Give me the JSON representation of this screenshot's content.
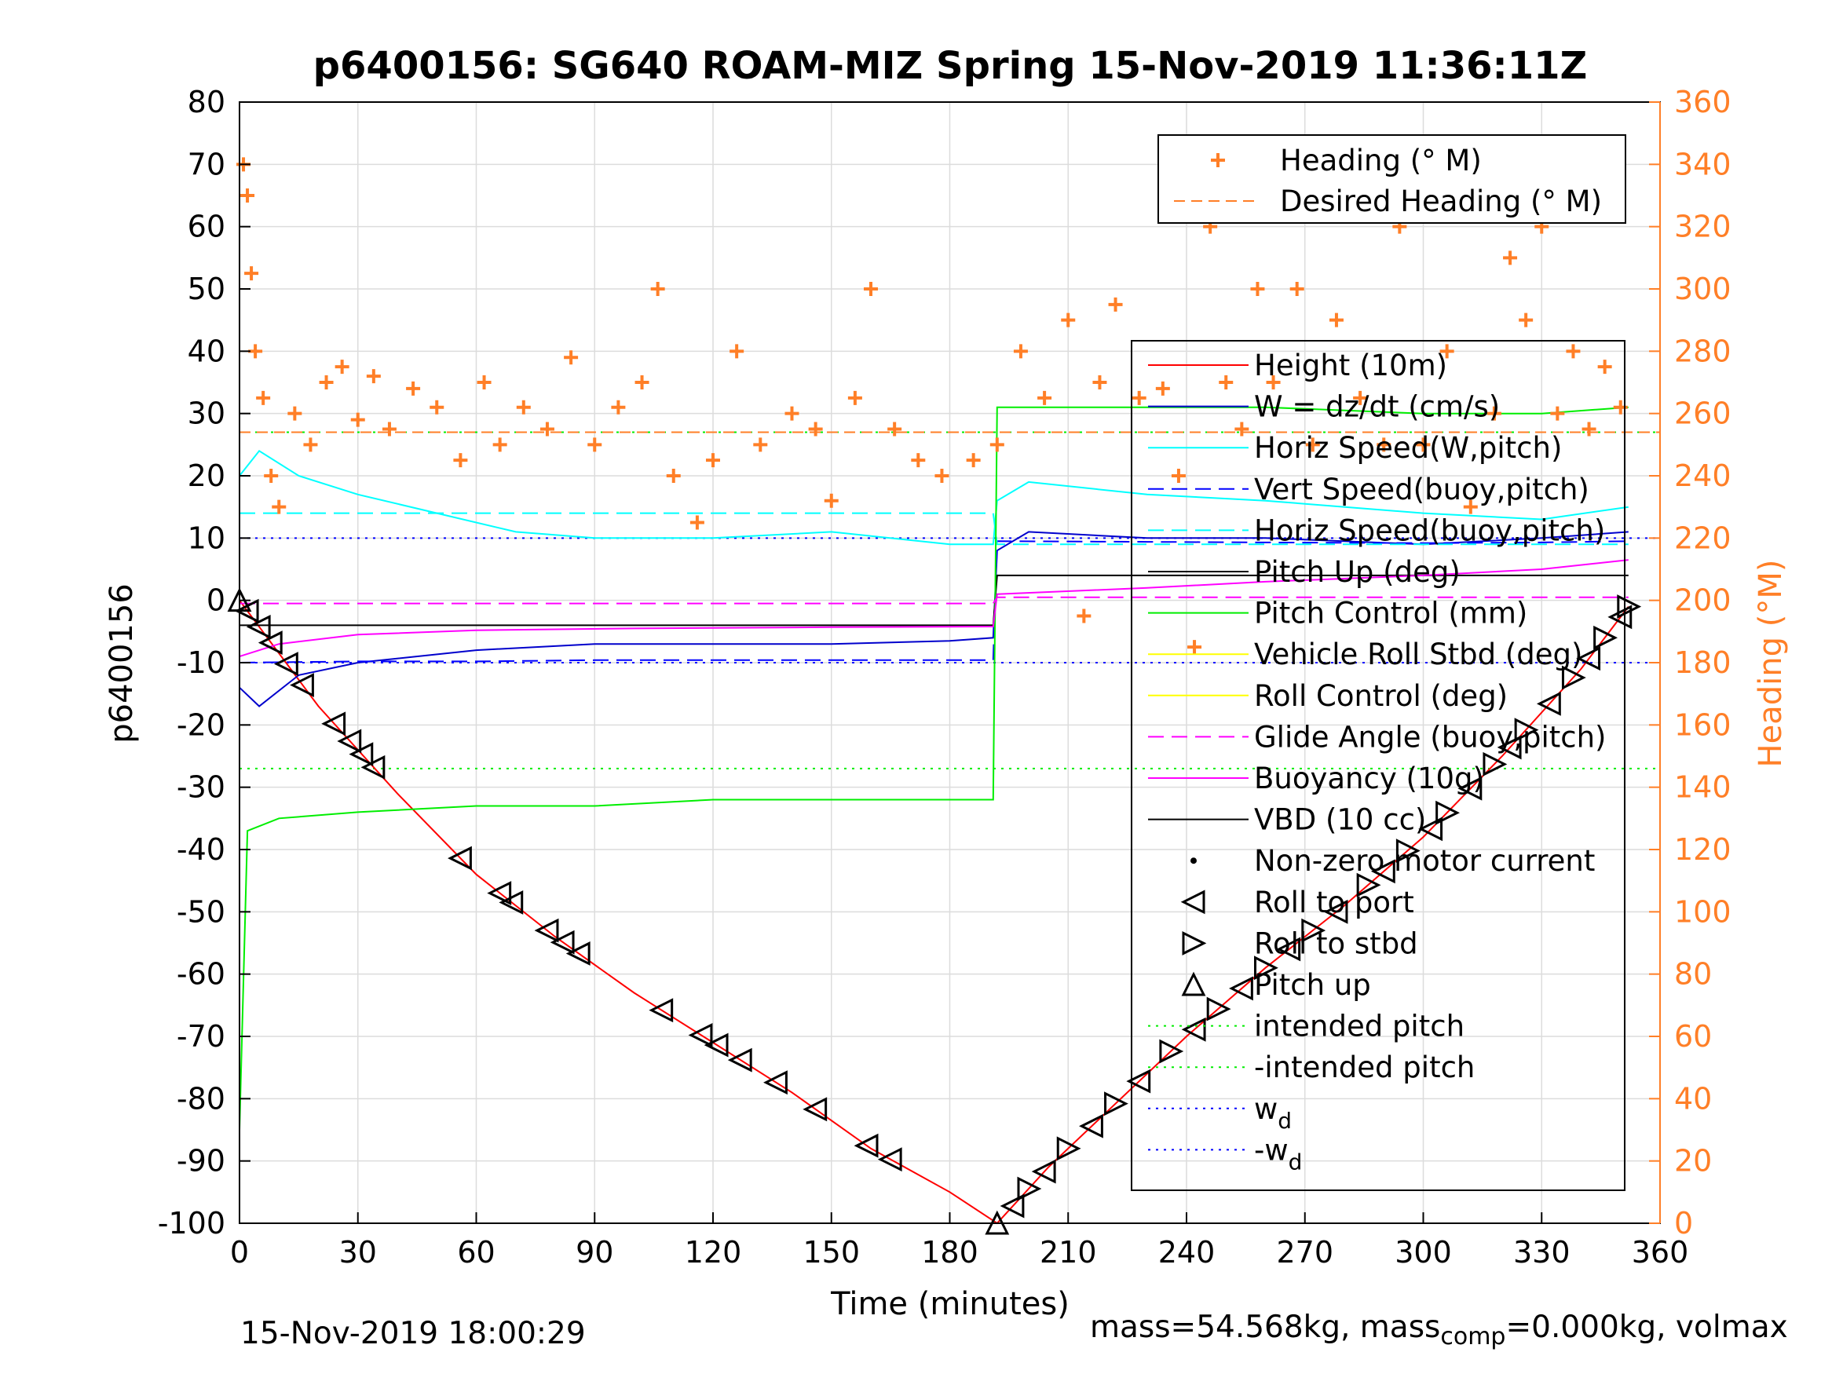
{
  "chart_data": {
    "type": "line",
    "title": "p6400156: SG640 ROAM-MIZ Spring 15-Nov-2019 11:36:11Z",
    "xlabel": "Time (minutes)",
    "ylabel_left": "p6400156",
    "ylabel_right": "Heading (°M)",
    "xlim": [
      0,
      360
    ],
    "ylim_left": [
      -100,
      80
    ],
    "ylim_right": [
      0,
      360
    ],
    "x_ticks": [
      0,
      30,
      60,
      90,
      120,
      150,
      180,
      210,
      240,
      270,
      300,
      330,
      360
    ],
    "y_ticks_left": [
      80,
      70,
      60,
      50,
      40,
      30,
      20,
      10,
      0,
      -10,
      -20,
      -30,
      -40,
      -50,
      -60,
      -70,
      -80,
      -90,
      -100
    ],
    "y_ticks_right": [
      360,
      340,
      320,
      300,
      280,
      260,
      240,
      220,
      200,
      180,
      160,
      140,
      120,
      100,
      80,
      60,
      40,
      20,
      0
    ],
    "grid": true,
    "colors": {
      "height": "#ff0000",
      "w": "#0000cc",
      "horiz_speed": "#00ffff",
      "vert_speed": "#0000ff",
      "pitch_up": "#000000",
      "pitch_control": "#00ee00",
      "roll": "#ffff00",
      "glide": "#ff00ff",
      "heading": "#ff7f27",
      "wd": "#0000ff"
    },
    "heading_legend": {
      "placement": "top-right",
      "entries": [
        "Heading (° M)",
        "Desired Heading (° M)"
      ]
    },
    "legend": {
      "placement": "right",
      "entries": [
        "Height (10m)",
        "W = dz/dt (cm/s)",
        "Horiz Speed(W,pitch)",
        "Vert Speed(buoy,pitch)",
        "Horiz Speed(buoy,pitch)",
        "Pitch Up (deg)",
        "Pitch Control (mm)",
        "Vehicle Roll Stbd (deg)",
        "Roll Control (deg)",
        "Glide Angle (buoy,pitch)",
        "Buoyancy (10g)",
        "VBD (10 cc)",
        "Non-zero motor current",
        "Roll to port",
        "Roll to stbd",
        "Pitch up",
        "intended pitch",
        "-intended pitch",
        "w",
        "-w"
      ],
      "subscripts": {
        "18": "d",
        "19": "d"
      }
    },
    "reference_lines": {
      "intended_pitch": 27,
      "wd": 10,
      "desired_heading_deg": 254
    },
    "series": [
      {
        "name": "Height (10m)",
        "x": [
          0,
          20,
          40,
          60,
          80,
          100,
          120,
          140,
          160,
          180,
          192,
          205,
          220,
          240,
          260,
          280,
          300,
          320,
          340,
          352
        ],
        "values": [
          0,
          -17,
          -31,
          -44,
          -54,
          -63,
          -71,
          -79,
          -88,
          -95,
          -100,
          -91,
          -82,
          -70,
          -59,
          -49,
          -38,
          -25,
          -11,
          -1
        ]
      },
      {
        "name": "W = dz/dt (cm/s)",
        "x": [
          0,
          5,
          15,
          30,
          60,
          90,
          120,
          150,
          180,
          191,
          192,
          200,
          230,
          260,
          300,
          330,
          352
        ],
        "values": [
          -14,
          -17,
          -12,
          -10,
          -8,
          -7,
          -7,
          -7,
          -6.5,
          -6,
          8,
          11,
          10,
          10,
          9,
          10,
          11
        ]
      },
      {
        "name": "Horiz Speed(W,pitch)",
        "x": [
          0,
          5,
          15,
          30,
          50,
          70,
          90,
          120,
          150,
          180,
          191,
          192,
          200,
          230,
          260,
          300,
          330,
          352
        ],
        "values": [
          20,
          24,
          20,
          17,
          14,
          11,
          10,
          10,
          11,
          9,
          9,
          16,
          19,
          17,
          16,
          14,
          13,
          15
        ]
      },
      {
        "name": "Vert Speed(buoy,pitch)",
        "x": [
          0,
          30,
          60,
          90,
          120,
          150,
          180,
          191,
          192,
          230,
          260,
          300,
          330,
          352
        ],
        "values": [
          -10,
          -9.8,
          -9.8,
          -9.6,
          -9.6,
          -9.6,
          -9.6,
          -9.6,
          9.5,
          9.4,
          9.3,
          9.2,
          9.3,
          9.5
        ]
      },
      {
        "name": "Horiz Speed(buoy,pitch)",
        "x": [
          0,
          30,
          60,
          90,
          120,
          150,
          180,
          191,
          192,
          230,
          260,
          300,
          330,
          352
        ],
        "values": [
          14,
          14,
          14,
          14,
          14,
          14,
          14,
          14,
          9,
          9,
          9,
          9,
          9,
          9
        ]
      },
      {
        "name": "Pitch Up (deg)",
        "x": [
          0,
          191,
          192,
          352
        ],
        "values": [
          -4,
          -4,
          4,
          4
        ]
      },
      {
        "name": "Pitch Control (mm)",
        "x": [
          0,
          2,
          10,
          30,
          60,
          90,
          120,
          150,
          180,
          191,
          192,
          230,
          260,
          300,
          330,
          352
        ],
        "values": [
          -85,
          -37,
          -35,
          -34,
          -33,
          -33,
          -32,
          -32,
          -32,
          -32,
          31,
          31,
          31,
          30,
          30,
          31
        ]
      },
      {
        "name": "Buoyancy (10g)",
        "x": [
          0,
          10,
          30,
          60,
          100,
          150,
          191,
          192,
          230,
          260,
          300,
          330,
          352
        ],
        "values": [
          -9,
          -7,
          -5.5,
          -4.8,
          -4.5,
          -4.3,
          -4.2,
          1,
          2,
          3,
          4,
          5,
          6.5
        ]
      },
      {
        "name": "Glide Angle (buoy,pitch)",
        "x": [
          0,
          191,
          192,
          352
        ],
        "values": [
          -0.5,
          -0.5,
          0.5,
          0.5
        ]
      }
    ],
    "heading_points_deg": [
      {
        "x": 1,
        "y": 340
      },
      {
        "x": 2,
        "y": 330
      },
      {
        "x": 3,
        "y": 305
      },
      {
        "x": 4,
        "y": 280
      },
      {
        "x": 6,
        "y": 265
      },
      {
        "x": 8,
        "y": 240
      },
      {
        "x": 10,
        "y": 230
      },
      {
        "x": 14,
        "y": 260
      },
      {
        "x": 18,
        "y": 250
      },
      {
        "x": 22,
        "y": 270
      },
      {
        "x": 26,
        "y": 275
      },
      {
        "x": 30,
        "y": 258
      },
      {
        "x": 34,
        "y": 272
      },
      {
        "x": 38,
        "y": 255
      },
      {
        "x": 44,
        "y": 268
      },
      {
        "x": 50,
        "y": 262
      },
      {
        "x": 56,
        "y": 245
      },
      {
        "x": 62,
        "y": 270
      },
      {
        "x": 66,
        "y": 250
      },
      {
        "x": 72,
        "y": 262
      },
      {
        "x": 78,
        "y": 255
      },
      {
        "x": 84,
        "y": 278
      },
      {
        "x": 90,
        "y": 250
      },
      {
        "x": 96,
        "y": 262
      },
      {
        "x": 102,
        "y": 270
      },
      {
        "x": 106,
        "y": 300
      },
      {
        "x": 110,
        "y": 240
      },
      {
        "x": 116,
        "y": 225
      },
      {
        "x": 120,
        "y": 245
      },
      {
        "x": 126,
        "y": 280
      },
      {
        "x": 132,
        "y": 250
      },
      {
        "x": 140,
        "y": 260
      },
      {
        "x": 146,
        "y": 255
      },
      {
        "x": 150,
        "y": 232
      },
      {
        "x": 156,
        "y": 265
      },
      {
        "x": 160,
        "y": 300
      },
      {
        "x": 166,
        "y": 255
      },
      {
        "x": 172,
        "y": 245
      },
      {
        "x": 178,
        "y": 240
      },
      {
        "x": 186,
        "y": 245
      },
      {
        "x": 192,
        "y": 250
      },
      {
        "x": 198,
        "y": 280
      },
      {
        "x": 204,
        "y": 265
      },
      {
        "x": 210,
        "y": 290
      },
      {
        "x": 214,
        "y": 195
      },
      {
        "x": 218,
        "y": 270
      },
      {
        "x": 222,
        "y": 295
      },
      {
        "x": 228,
        "y": 265
      },
      {
        "x": 234,
        "y": 268
      },
      {
        "x": 238,
        "y": 240
      },
      {
        "x": 242,
        "y": 185
      },
      {
        "x": 246,
        "y": 320
      },
      {
        "x": 250,
        "y": 270
      },
      {
        "x": 254,
        "y": 255
      },
      {
        "x": 258,
        "y": 300
      },
      {
        "x": 262,
        "y": 270
      },
      {
        "x": 268,
        "y": 300
      },
      {
        "x": 272,
        "y": 250
      },
      {
        "x": 278,
        "y": 290
      },
      {
        "x": 284,
        "y": 265
      },
      {
        "x": 290,
        "y": 250
      },
      {
        "x": 294,
        "y": 320
      },
      {
        "x": 300,
        "y": 250
      },
      {
        "x": 306,
        "y": 280
      },
      {
        "x": 312,
        "y": 230
      },
      {
        "x": 318,
        "y": 260
      },
      {
        "x": 322,
        "y": 310
      },
      {
        "x": 326,
        "y": 290
      },
      {
        "x": 330,
        "y": 320
      },
      {
        "x": 334,
        "y": 260
      },
      {
        "x": 338,
        "y": 280
      },
      {
        "x": 342,
        "y": 255
      },
      {
        "x": 346,
        "y": 275
      },
      {
        "x": 350,
        "y": 262
      }
    ],
    "marker_points": {
      "roll_to_port_x": [
        2,
        5,
        8,
        12,
        16,
        24,
        28,
        31,
        34,
        56,
        66,
        69,
        78,
        82,
        86,
        107,
        117,
        121,
        127,
        136,
        146,
        159,
        165
      ],
      "pitch_up_x": [
        0,
        192
      ],
      "climb_marker_x": [
        196,
        200,
        204,
        210,
        216,
        222,
        228,
        236,
        242,
        248,
        254,
        260,
        266,
        272,
        278,
        286,
        290,
        296,
        302,
        306,
        312,
        318,
        322,
        326,
        332,
        338,
        342,
        346,
        350,
        352
      ]
    }
  },
  "footer": {
    "timestamp": "15-Nov-2019 18:00:29",
    "mass_text": "mass=54.568kg, mass",
    "mass_sub": "comp",
    "mass_text2": "=0.000kg, volmax"
  }
}
